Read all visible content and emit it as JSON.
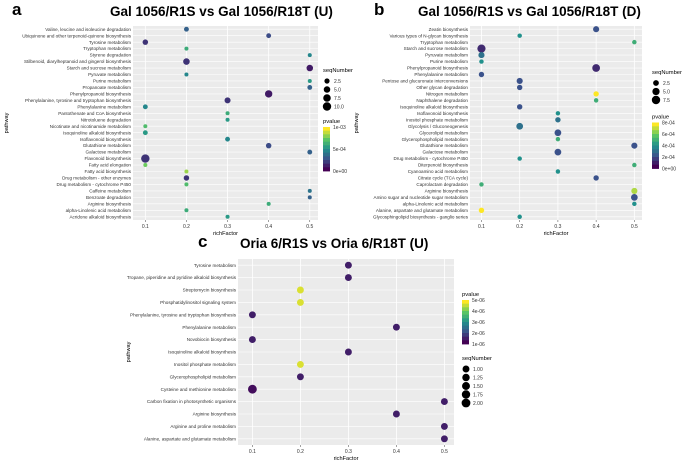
{
  "chart_data": [
    {
      "panel": "a",
      "title": "Gal 1056/R1S vs Gal 1056/R18T (U)",
      "type": "scatter",
      "xlabel": "richFactor",
      "ylabel": "pathway",
      "xlim": [
        0.07,
        0.52
      ],
      "xticks": [
        "0.1",
        "0.2",
        "0.3",
        "0.4",
        "0.5"
      ],
      "xtick_values": [
        0.1,
        0.2,
        0.3,
        0.4,
        0.5
      ],
      "size_legend": {
        "title": "seqNumber",
        "labels": [
          "2.5",
          "5.0",
          "7.5",
          "10.0"
        ],
        "values": [
          2.5,
          5,
          7.5,
          10
        ]
      },
      "color_legend": {
        "title": "pvalue",
        "labels": [
          "1e-03",
          "5e-04",
          "0e+00"
        ],
        "max": 0.0013
      },
      "categories": [
        "Valine, leucine and isoleucine degradation",
        "Ubiquinone and other terpenoid-quinone biosynthesis",
        "Tyrosine metabolism",
        "Tryptophan metabolism",
        "Styrene degradation",
        "Stilbenoid, diarylheptanoid and gingerol biosynthesis",
        "Starch and sucrose metabolism",
        "Pyruvate metabolism",
        "Purine metabolism",
        "Propanoate metabolism",
        "Phenylpropanoid biosynthesis",
        "Phenylalanine, tyrosine and tryptophan biosynthesis",
        "Phenylalanine metabolism",
        "Pantothenate and CoA biosynthesis",
        "Nitrotoluene degradation",
        "Nicotinate and nicotinamide metabolism",
        "Isoquinoline alkaloid biosynthesis",
        "Isoflavonoid biosynthesis",
        "Glutathione metabolism",
        "Galactose metabolism",
        "Flavonoid biosynthesis",
        "Fatty acid elongation",
        "Fatty acid biosynthesis",
        "Drug metabolism - other enzymes",
        "Drug metabolism - cytochrome P450",
        "Caffeine metabolism",
        "Benzoate degradation",
        "Arginine biosynthesis",
        "alpha-Linolenic acid metabolism",
        "Acridone alkaloid biosynthesis"
      ],
      "points": [
        {
          "x": 0.2,
          "size": 2,
          "p": 0.0004
        },
        {
          "x": 0.4,
          "size": 2,
          "p": 0.0003
        },
        {
          "x": 0.1,
          "size": 3,
          "p": 0.0002
        },
        {
          "x": 0.2,
          "size": 1,
          "p": 0.0008
        },
        {
          "x": 0.5,
          "size": 1,
          "p": 0.0006
        },
        {
          "x": 0.2,
          "size": 5,
          "p": 0.0002
        },
        {
          "x": 0.5,
          "size": 5,
          "p": 0.0001
        },
        {
          "x": 0.2,
          "size": 1,
          "p": 0.0006
        },
        {
          "x": 0.5,
          "size": 1,
          "p": 0.0007
        },
        {
          "x": 0.5,
          "size": 2,
          "p": 0.0004
        },
        {
          "x": 0.4,
          "size": 7,
          "p": 0.0001
        },
        {
          "x": 0.3,
          "size": 4,
          "p": 0.0002
        },
        {
          "x": 0.1,
          "size": 2,
          "p": 0.0006
        },
        {
          "x": 0.3,
          "size": 1,
          "p": 0.0008
        },
        {
          "x": 0.3,
          "size": 1,
          "p": 0.0007
        },
        {
          "x": 0.1,
          "size": 1,
          "p": 0.0009
        },
        {
          "x": 0.1,
          "size": 2,
          "p": 0.0007
        },
        {
          "x": 0.3,
          "size": 2,
          "p": 0.0006
        },
        {
          "x": 0.4,
          "size": 3,
          "p": 0.0003
        },
        {
          "x": 0.5,
          "size": 2,
          "p": 0.0004
        },
        {
          "x": 0.1,
          "size": 10,
          "p": 0.0002
        },
        {
          "x": 0.1,
          "size": 1,
          "p": 0.001
        },
        {
          "x": 0.2,
          "size": 1,
          "p": 0.0011
        },
        {
          "x": 0.2,
          "size": 3,
          "p": 0.0002
        },
        {
          "x": 0.2,
          "size": 1,
          "p": 0.0009
        },
        {
          "x": 0.5,
          "size": 1,
          "p": 0.0005
        },
        {
          "x": 0.5,
          "size": 1,
          "p": 0.0004
        },
        {
          "x": 0.4,
          "size": 1,
          "p": 0.0008
        },
        {
          "x": 0.2,
          "size": 1,
          "p": 0.0008
        },
        {
          "x": 0.3,
          "size": 1,
          "p": 0.0007
        }
      ]
    },
    {
      "panel": "b",
      "title": "Gal 1056/R1S vs Gal 1056/R18T (D)",
      "type": "scatter",
      "xlabel": "richFactor",
      "ylabel": "pathway",
      "xlim": [
        0.07,
        0.52
      ],
      "xticks": [
        "0.1",
        "0.2",
        "0.3",
        "0.4",
        "0.5"
      ],
      "xtick_values": [
        0.1,
        0.2,
        0.3,
        0.4,
        0.5
      ],
      "size_legend": {
        "title": "seqNumber",
        "labels": [
          "2.5",
          "5.0",
          "7.5"
        ],
        "values": [
          2.5,
          5,
          7.5
        ]
      },
      "color_legend": {
        "title": "pvalue",
        "labels": [
          "8e-04",
          "6e-04",
          "4e-04",
          "2e-04",
          "0e+00"
        ],
        "max": 0.0008
      },
      "categories": [
        "Zeatin biosynthesis",
        "Various types of N-glycan biosynthesis",
        "Tryptophan metabolism",
        "Starch and sucrose metabolism",
        "Pyruvate metabolism",
        "Purine metabolism",
        "Phenylpropanoid biosynthesis",
        "Phenylalanine metabolism",
        "Pentose and glucuronate interconversions",
        "Other glycan degradation",
        "Nitrogen metabolism",
        "Naphthalene degradation",
        "Isoquinoline alkaloid biosynthesis",
        "Isoflavonoid biosynthesis",
        "Inositol phosphate metabolism",
        "Glycolysis / Gluconeogenesis",
        "Glycerolipid metabolism",
        "Glycerophospholipid metabolism",
        "Glutathione metabolism",
        "Galactose metabolism",
        "Drug metabolism - cytochrome P450",
        "Diterpenoid biosynthesis",
        "Cyanoamino acid metabolism",
        "Citrate cycle (TCA cycle)",
        "Caprolactam degradation",
        "Arginine biosynthesis",
        "Amino sugar and nucleotide sugar metabolism",
        "alpha-Linolenic acid metabolism",
        "Alanine, aspartate and glutamate metabolism",
        "Glycosphingolipid biosynthesis - ganglio series"
      ],
      "points": [
        {
          "x": 0.4,
          "size": 3,
          "p": 0.0002
        },
        {
          "x": 0.2,
          "size": 1,
          "p": 0.0004
        },
        {
          "x": 0.5,
          "size": 1,
          "p": 0.0005
        },
        {
          "x": 0.1,
          "size": 7,
          "p": 0.0001
        },
        {
          "x": 0.1,
          "size": 3,
          "p": 0.0003
        },
        {
          "x": 0.1,
          "size": 1,
          "p": 0.0004
        },
        {
          "x": 0.4,
          "size": 6,
          "p": 0.0001
        },
        {
          "x": 0.1,
          "size": 2,
          "p": 0.0002
        },
        {
          "x": 0.2,
          "size": 3,
          "p": 0.0002
        },
        {
          "x": 0.2,
          "size": 2,
          "p": 0.0002
        },
        {
          "x": 0.4,
          "size": 2,
          "p": 0.0008
        },
        {
          "x": 0.4,
          "size": 1,
          "p": 0.0005
        },
        {
          "x": 0.2,
          "size": 2,
          "p": 0.0002
        },
        {
          "x": 0.3,
          "size": 1,
          "p": 0.0004
        },
        {
          "x": 0.3,
          "size": 2,
          "p": 0.0003
        },
        {
          "x": 0.2,
          "size": 4,
          "p": 0.0003
        },
        {
          "x": 0.3,
          "size": 4,
          "p": 0.0002
        },
        {
          "x": 0.3,
          "size": 1,
          "p": 0.0005
        },
        {
          "x": 0.5,
          "size": 3,
          "p": 0.0002
        },
        {
          "x": 0.3,
          "size": 4,
          "p": 0.0002
        },
        {
          "x": 0.2,
          "size": 1,
          "p": 0.0004
        },
        {
          "x": 0.5,
          "size": 1,
          "p": 0.0005
        },
        {
          "x": 0.3,
          "size": 1,
          "p": 0.0004
        },
        {
          "x": 0.4,
          "size": 2,
          "p": 0.0002
        },
        {
          "x": 0.1,
          "size": 1,
          "p": 0.0005
        },
        {
          "x": 0.5,
          "size": 3,
          "p": 0.0007
        },
        {
          "x": 0.5,
          "size": 4,
          "p": 0.0002
        },
        {
          "x": 0.5,
          "size": 1,
          "p": 0.0004
        },
        {
          "x": 0.1,
          "size": 2,
          "p": 0.0008
        },
        {
          "x": 0.2,
          "size": 1,
          "p": 0.0004
        }
      ]
    },
    {
      "panel": "c",
      "title": "Oria 6/R1S vs Oria 6/R18T (U)",
      "type": "scatter",
      "xlabel": "richFactor",
      "ylabel": "pathway",
      "xlim": [
        0.07,
        0.52
      ],
      "xticks": [
        "0.1",
        "0.2",
        "0.3",
        "0.4",
        "0.5"
      ],
      "xtick_values": [
        0.1,
        0.2,
        0.3,
        0.4,
        0.5
      ],
      "size_legend": {
        "title": "seqNumber",
        "labels": [
          "1.00",
          "1.25",
          "1.50",
          "1.75",
          "2.00"
        ],
        "values": [
          1,
          1.25,
          1.5,
          1.75,
          2
        ]
      },
      "color_legend": {
        "title": "pvalue",
        "labels": [
          "5e-06",
          "4e-06",
          "3e-06",
          "2e-06",
          "1e-06"
        ],
        "max": 5.5e-06
      },
      "categories": [
        "Tyrosine metabolism",
        "Tropane, piperidine and pyridine alkaloid biosynthesis",
        "Streptomycin biosynthesis",
        "Phosphatidylinositol signaling system",
        "Phenylalanine, tyrosine and tryptophan biosynthesis",
        "Phenylalanine metabolism",
        "Novobiocin biosynthesis",
        "Isoquinoline alkaloid biosynthesis",
        "Inositol phosphate metabolism",
        "Glycerophospholipid metabolism",
        "Cysteine and methionine metabolism",
        "Carbon fixation in photosynthetic organisms",
        "Arginine biosynthesis",
        "Arginine and proline metabolism",
        "Alanine, aspartate and glutamate metabolism"
      ],
      "points": [
        {
          "x": 0.3,
          "size": 1,
          "p": 5e-07
        },
        {
          "x": 0.3,
          "size": 1,
          "p": 5e-07
        },
        {
          "x": 0.2,
          "size": 1,
          "p": 5.2e-06
        },
        {
          "x": 0.2,
          "size": 1,
          "p": 5.2e-06
        },
        {
          "x": 0.1,
          "size": 1,
          "p": 5e-07
        },
        {
          "x": 0.4,
          "size": 1,
          "p": 5e-07
        },
        {
          "x": 0.1,
          "size": 1,
          "p": 5e-07
        },
        {
          "x": 0.3,
          "size": 1,
          "p": 5e-07
        },
        {
          "x": 0.2,
          "size": 1,
          "p": 5.2e-06
        },
        {
          "x": 0.2,
          "size": 1,
          "p": 5e-07
        },
        {
          "x": 0.1,
          "size": 2,
          "p": 2e-07
        },
        {
          "x": 0.5,
          "size": 1,
          "p": 5e-07
        },
        {
          "x": 0.4,
          "size": 1,
          "p": 5e-07
        },
        {
          "x": 0.5,
          "size": 1,
          "p": 5e-07
        },
        {
          "x": 0.5,
          "size": 1,
          "p": 5e-07
        }
      ]
    }
  ]
}
